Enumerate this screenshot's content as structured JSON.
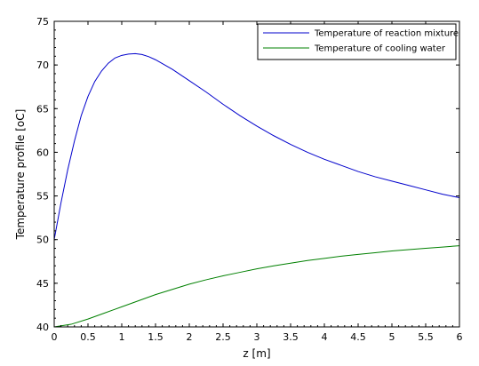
{
  "chart_data": {
    "type": "line",
    "xlabel": "z [m]",
    "ylabel": "Temperature profile [oC]",
    "xlim": [
      0,
      6
    ],
    "ylim": [
      40,
      75
    ],
    "xticks": [
      0,
      0.5,
      1,
      1.5,
      2,
      2.5,
      3,
      3.5,
      4,
      4.5,
      5,
      5.5,
      6
    ],
    "xtick_labels": [
      "0",
      "0.5",
      "1",
      "1.5",
      "2",
      "2.5",
      "3",
      "3.5",
      "4",
      "4.5",
      "5",
      "5.5",
      "6"
    ],
    "yticks": [
      40,
      45,
      50,
      55,
      60,
      65,
      70,
      75
    ],
    "ytick_labels": [
      "40",
      "45",
      "50",
      "55",
      "60",
      "65",
      "70",
      "75"
    ],
    "grid": false,
    "legend_position": "top-right",
    "series": [
      {
        "name": "Temperature of reaction mixture",
        "color": "#0000cc",
        "x": [
          0,
          0.1,
          0.2,
          0.3,
          0.4,
          0.5,
          0.6,
          0.7,
          0.8,
          0.9,
          1.0,
          1.1,
          1.2,
          1.3,
          1.4,
          1.5,
          1.75,
          2.0,
          2.25,
          2.5,
          2.75,
          3.0,
          3.25,
          3.5,
          3.75,
          4.0,
          4.25,
          4.5,
          4.75,
          5.0,
          5.25,
          5.5,
          5.75,
          6.0
        ],
        "y": [
          50.0,
          54.2,
          58.0,
          61.3,
          64.2,
          66.4,
          68.1,
          69.3,
          70.2,
          70.8,
          71.1,
          71.25,
          71.3,
          71.2,
          70.95,
          70.6,
          69.5,
          68.2,
          66.9,
          65.5,
          64.2,
          63.0,
          61.9,
          60.9,
          60.0,
          59.2,
          58.5,
          57.8,
          57.2,
          56.7,
          56.2,
          55.7,
          55.2,
          54.8
        ]
      },
      {
        "name": "Temperature of cooling water",
        "color": "#008000",
        "x": [
          0,
          0.25,
          0.5,
          0.75,
          1.0,
          1.25,
          1.5,
          1.75,
          2.0,
          2.25,
          2.5,
          2.75,
          3.0,
          3.25,
          3.5,
          3.75,
          4.0,
          4.25,
          4.5,
          4.75,
          5.0,
          5.25,
          5.5,
          5.75,
          6.0
        ],
        "y": [
          40.0,
          40.3,
          40.9,
          41.6,
          42.3,
          43.0,
          43.7,
          44.3,
          44.9,
          45.4,
          45.85,
          46.25,
          46.65,
          47.0,
          47.3,
          47.6,
          47.85,
          48.1,
          48.3,
          48.5,
          48.7,
          48.85,
          49.0,
          49.15,
          49.3
        ]
      }
    ]
  }
}
